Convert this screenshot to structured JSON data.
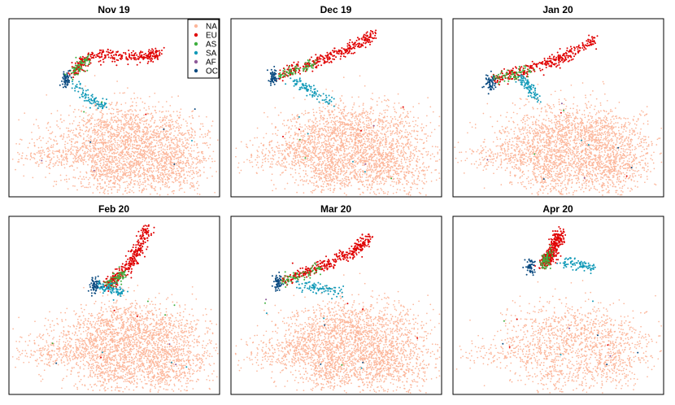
{
  "legend": {
    "entries": [
      {
        "label": "NA",
        "color": "#FCB69A"
      },
      {
        "label": "EU",
        "color": "#E00000"
      },
      {
        "label": "AS",
        "color": "#3FAF3F"
      },
      {
        "label": "SA",
        "color": "#129AB8"
      },
      {
        "label": "AF",
        "color": "#8E5A9A"
      },
      {
        "label": "OC",
        "color": "#0A4A80"
      }
    ]
  },
  "chart_data": [
    {
      "type": "scatter",
      "title": "Nov 19",
      "xlabel": "",
      "ylabel": "",
      "grid": false,
      "legend": "top-right"
    },
    {
      "type": "scatter",
      "title": "Dec 19",
      "xlabel": "",
      "ylabel": "",
      "grid": false
    },
    {
      "type": "scatter",
      "title": "Jan 20",
      "xlabel": "",
      "ylabel": "",
      "grid": false
    },
    {
      "type": "scatter",
      "title": "Feb 20",
      "xlabel": "",
      "ylabel": "",
      "grid": false
    },
    {
      "type": "scatter",
      "title": "Mar 20",
      "xlabel": "",
      "ylabel": "",
      "grid": false
    },
    {
      "type": "scatter",
      "title": "Apr 20",
      "xlabel": "",
      "ylabel": "",
      "grid": false
    }
  ]
}
